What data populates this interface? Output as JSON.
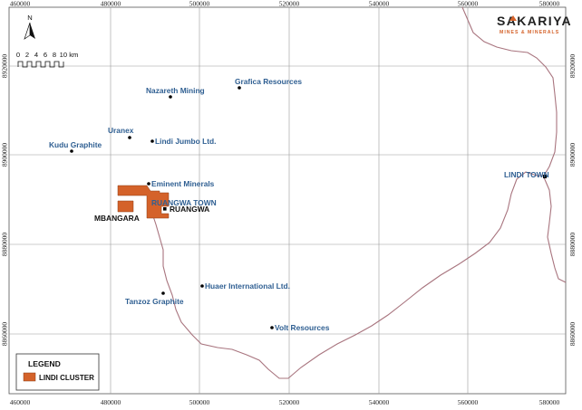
{
  "logo": {
    "name": "SAKARIYA",
    "tagline": "MINES & MINERALS",
    "accent_color": "#d4622a"
  },
  "north_arrow": {
    "label": "N",
    "icon": "north-arrow-icon"
  },
  "scale_bar": {
    "ticks": [
      "0",
      "2",
      "4",
      "6",
      "8",
      "10 km"
    ]
  },
  "axes": {
    "x_ticks": [
      "460000",
      "480000",
      "500000",
      "520000",
      "540000",
      "560000",
      "580000"
    ],
    "y_ticks": [
      "8920000",
      "8900000",
      "8880000",
      "8860000"
    ]
  },
  "places": [
    {
      "label": "Grafica Resources",
      "type": "company"
    },
    {
      "label": "Nazareth Mining",
      "type": "company"
    },
    {
      "label": "Uranex",
      "type": "company"
    },
    {
      "label": "Lindi Jumbo Ltd.",
      "type": "company"
    },
    {
      "label": "Kudu Graphite",
      "type": "company"
    },
    {
      "label": "Eminent Minerals",
      "type": "company"
    },
    {
      "label": "RUANGWA TOWN",
      "type": "town"
    },
    {
      "label": "RUANGWA",
      "type": "project"
    },
    {
      "label": "MBANGARA",
      "type": "project"
    },
    {
      "label": "Tanzoz Graphite",
      "type": "company"
    },
    {
      "label": "Huaer International Ltd.",
      "type": "company"
    },
    {
      "label": "Volt Resources",
      "type": "company"
    },
    {
      "label": "LINDI TOWN",
      "type": "town"
    }
  ],
  "legend": {
    "title": "LEGEND",
    "items": [
      {
        "label": "LINDI CLUSTER",
        "color": "#d4622a"
      }
    ]
  },
  "colors": {
    "label_blue": "#2f5f92",
    "boundary": "#a8747e",
    "cluster": "#d4622a",
    "grid": "#9a9a9a"
  }
}
